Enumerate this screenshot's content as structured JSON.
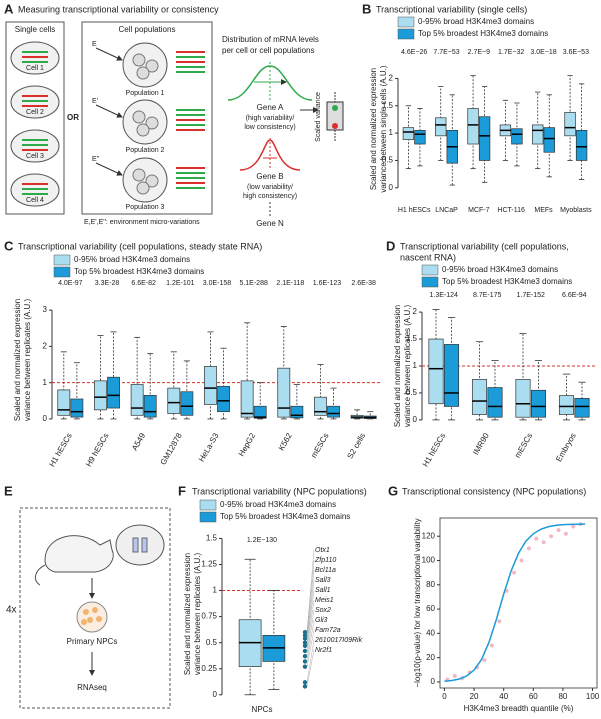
{
  "diagram_a": {
    "label": "A",
    "title": "Measuring transcriptional variability or consistency",
    "single_cells": "Single cells",
    "cells": [
      "Cell 1",
      "Cell 2",
      "Cell 3",
      "Cell 4"
    ],
    "or": "OR",
    "cell_populations": "Cell populations",
    "populations": [
      "Population 1",
      "Population 2",
      "Population 3"
    ],
    "environments": [
      "E",
      "E'",
      "E''"
    ],
    "environment_note": "E,E',E'': environment micro-variations",
    "distribution_title": [
      "Distribution of mRNA levels",
      "per cell or cell populations"
    ],
    "gene_a": [
      "Gene A",
      "(high variability/",
      "low consistency)"
    ],
    "gene_b": [
      "Gene B",
      "(low variability/",
      "high consistency)"
    ],
    "gene_n": "Gene N",
    "scaled_variance": "Scaled variance"
  },
  "diagram_e": {
    "label": "E",
    "repeat": "4x",
    "cells": "Primary NPCs",
    "assay": "RNAseq"
  },
  "chart_data": [
    {
      "type": "box",
      "panel_label": "B",
      "title": "Transcriptional variability (single cells)",
      "y_label": [
        "Scaled and normalized expression",
        "variance between single cells (A.U.)"
      ],
      "categories": [
        "H1 hESCs",
        "LNCaP",
        "MCF-7",
        "HCT-116",
        "MEFs",
        "Myoblasts"
      ],
      "p_values": [
        "4.6E−26",
        "7.7E−53",
        "2.7E−9",
        "1.7E−32",
        "3.0E−18",
        "3.6E−53"
      ],
      "series": [
        {
          "name": "0-95% broad H3K4me3 domains",
          "color": "#a9ddef",
          "values": [
            [
              0.35,
              0.88,
              1.02,
              1.1,
              1.5
            ],
            [
              0.5,
              0.95,
              1.15,
              1.28,
              1.85
            ],
            [
              0.35,
              0.8,
              1.15,
              1.45,
              2.05
            ],
            [
              0.5,
              0.95,
              1.05,
              1.15,
              1.6
            ],
            [
              0.35,
              0.8,
              1.05,
              1.15,
              1.75
            ],
            [
              0.5,
              0.95,
              1.1,
              1.38,
              2.05
            ]
          ]
        },
        {
          "name": "Top 5% broadest H3K4me3 domains",
          "color": "#1b9bd7",
          "values": [
            [
              0.4,
              0.8,
              0.98,
              1.05,
              1.45
            ],
            [
              0.05,
              0.45,
              0.75,
              1.05,
              1.7
            ],
            [
              0.1,
              0.5,
              0.95,
              1.3,
              1.85
            ],
            [
              0.4,
              0.8,
              0.98,
              1.08,
              1.55
            ],
            [
              0.2,
              0.65,
              0.9,
              1.1,
              1.7
            ],
            [
              0.15,
              0.5,
              0.75,
              1.05,
              1.9
            ]
          ]
        }
      ],
      "ylim": [
        -0.15,
        2.3
      ],
      "yticks": [
        0,
        0.5,
        1,
        1.5,
        2
      ]
    },
    {
      "type": "box",
      "panel_label": "C",
      "title": "Transcriptional variability (cell populations, steady state RNA)",
      "y_label": [
        "Scaled and normalized expression",
        "variance between replicates (A.U.)"
      ],
      "categories": [
        "H1 hESCs",
        "H9 hESCs",
        "A549",
        "GM12878",
        "HeLa-S3",
        "HepG2",
        "K562",
        "mESCs",
        "S2 cells"
      ],
      "p_values": [
        "4.0E-97",
        "3.3E-28",
        "6.6E-82",
        "1.2E-101",
        "3.0E-158",
        "5.1E-288",
        "2.1E-118",
        "1.6E-123",
        "2.6E-38"
      ],
      "series": [
        {
          "name": "0-95% broad H3K4me3 domains",
          "color": "#a9ddef",
          "values": [
            [
              0,
              0.1,
              0.25,
              0.8,
              1.85
            ],
            [
              0,
              0.25,
              0.6,
              1.05,
              2.3
            ],
            [
              0,
              0.1,
              0.3,
              0.95,
              2.25
            ],
            [
              0,
              0.15,
              0.45,
              0.85,
              1.85
            ],
            [
              0,
              0.4,
              0.85,
              1.45,
              2.4
            ],
            [
              0,
              0.05,
              0.15,
              1.05,
              2.65
            ],
            [
              0,
              0.05,
              0.3,
              1.4,
              2.55
            ],
            [
              0,
              0.1,
              0.2,
              0.6,
              1.5
            ],
            [
              0,
              0.02,
              0.05,
              0.1,
              0.25
            ]
          ]
        },
        {
          "name": "Top 5% broadest H3K4me3 domains",
          "color": "#1b9bd7",
          "values": [
            [
              0,
              0.05,
              0.2,
              0.55,
              1.55
            ],
            [
              0,
              0.3,
              0.65,
              1.15,
              2.4
            ],
            [
              0,
              0.05,
              0.2,
              0.65,
              1.8
            ],
            [
              0,
              0.1,
              0.35,
              0.75,
              1.6
            ],
            [
              0,
              0.2,
              0.5,
              0.9,
              1.95
            ],
            [
              0,
              0.02,
              0.05,
              0.35,
              1
            ],
            [
              0,
              0.03,
              0.1,
              0.35,
              0.95
            ],
            [
              0,
              0.05,
              0.15,
              0.35,
              0.85
            ],
            [
              0,
              0.01,
              0.04,
              0.08,
              0.2
            ]
          ]
        }
      ],
      "reference_line": 1,
      "reference_color": "#d9302c",
      "ylim": [
        -0.25,
        3.5
      ],
      "yticks": [
        0,
        1,
        2,
        3
      ]
    },
    {
      "type": "box",
      "panel_label": "D",
      "title": [
        "Transcriptional variability (cell populations,",
        "nascent RNA)"
      ],
      "y_label": [
        "Scaled and normalized expression",
        "variance between replicates (A.U.)"
      ],
      "categories": [
        "H1 hESCs",
        "IMR90",
        "mESCs",
        "Embryos"
      ],
      "p_values": [
        "1.3E-124",
        "8.7E-175",
        "1.7E-152",
        "6.6E-94"
      ],
      "series": [
        {
          "name": "0-95% broad H3K4me3 domains",
          "color": "#a9ddef",
          "values": [
            [
              0,
              0.3,
              0.95,
              1.5,
              2.05
            ],
            [
              0,
              0.1,
              0.35,
              0.75,
              1.45
            ],
            [
              0,
              0.05,
              0.3,
              0.75,
              1.6
            ],
            [
              0,
              0.1,
              0.25,
              0.45,
              0.85
            ]
          ]
        },
        {
          "name": "Top 5% broadest H3K4me3 domains",
          "color": "#1b9bd7",
          "values": [
            [
              0,
              0.25,
              0.5,
              1.4,
              1.9
            ],
            [
              0,
              0.05,
              0.25,
              0.6,
              1.1
            ],
            [
              0,
              0.05,
              0.25,
              0.55,
              1.1
            ],
            [
              0,
              0.05,
              0.25,
              0.4,
              0.7
            ]
          ]
        }
      ],
      "reference_line": 1,
      "reference_color": "#d9302c",
      "ylim": [
        -0.15,
        2.15
      ],
      "yticks": [
        0,
        0.5,
        1,
        1.5,
        2
      ]
    },
    {
      "type": "box",
      "panel_label": "F",
      "title": "Transcriptional variability (NPC populations)",
      "y_label": [
        "Scaled and normalized expression",
        "variance between replicates (A.U.)"
      ],
      "categories": [
        "NPCs"
      ],
      "p_values": [
        "1.2E−130"
      ],
      "series": [
        {
          "name": "0-95% broad H3K4me3 domains",
          "color": "#a9ddef",
          "values": [
            [
              0,
              0.27,
              0.5,
              0.72,
              1.3
            ]
          ]
        },
        {
          "name": "Top 5% broadest H3K4me3 domains",
          "color": "#1b9bd7",
          "values": [
            [
              0.05,
              0.32,
              0.45,
              0.57,
              1
            ]
          ]
        }
      ],
      "reference_line": 1,
      "reference_color": "#d9302c",
      "genes": [
        "Otx1",
        "Zfp110",
        "Bcl11a",
        "Sall3",
        "Sall1",
        "Meis1",
        "Sox2",
        "Gli3",
        "Fam72a",
        "2610017I09Rik",
        "Nr2f1"
      ],
      "gene_values": [
        0.6,
        0.57,
        0.54,
        0.5,
        0.47,
        0.42,
        0.37,
        0.32,
        0.27,
        0.12,
        0.08
      ],
      "gene_color": "#1b6f8a",
      "ylim": [
        -0.05,
        1.6
      ],
      "yticks": [
        0,
        0.25,
        0.5,
        0.75,
        1,
        1.25,
        1.5
      ]
    },
    {
      "type": "scatter",
      "panel_label": "G",
      "title": "Transcriptional consistency (NPC populations)",
      "x_label": "H3K4me3 breadth quantile (%)",
      "y_label": "−log10(p-value) for low transcriptional variability",
      "x": [
        2,
        7,
        12,
        17,
        22,
        27,
        32,
        37,
        42,
        47,
        52,
        57,
        62,
        67,
        72,
        77,
        82,
        87,
        92
      ],
      "values": [
        2,
        5,
        3,
        8,
        12,
        18,
        30,
        50,
        75,
        90,
        100,
        110,
        118,
        115,
        120,
        125,
        122,
        128,
        130
      ],
      "color": "#f2b8c6",
      "fit": {
        "x": [
          0,
          5,
          10,
          15,
          20,
          25,
          30,
          35,
          40,
          45,
          50,
          55,
          60,
          65,
          70,
          75,
          80,
          85,
          90,
          95
        ],
        "values": [
          0.6,
          1.2,
          2.4,
          4.9,
          9.7,
          18.4,
          32.4,
          51.2,
          72.3,
          91.3,
          106,
          116,
          122,
          125.7,
          127.8,
          128.9,
          129.5,
          129.8,
          129.9,
          130
        ],
        "color": "#1b9bd7"
      },
      "xlim": [
        -3,
        103
      ],
      "ylim": [
        -5,
        135
      ],
      "xticks": [
        0,
        20,
        40,
        60,
        80,
        100
      ],
      "yticks": [
        0,
        20,
        40,
        60,
        80,
        100,
        120
      ]
    }
  ]
}
